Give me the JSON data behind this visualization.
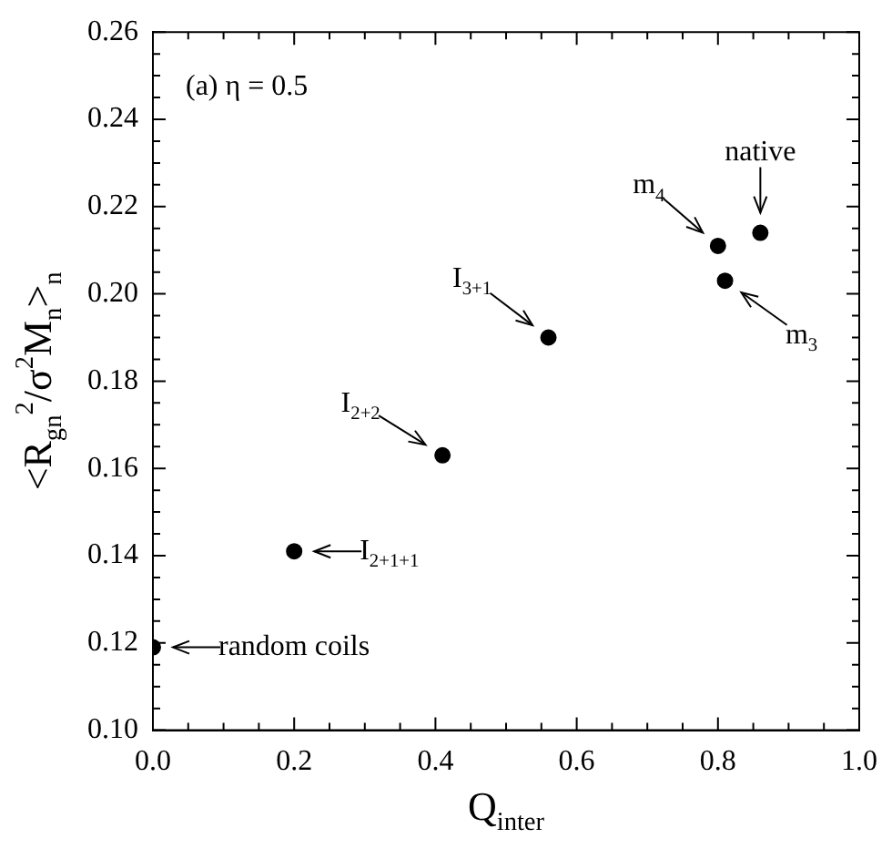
{
  "chart_data": {
    "type": "scatter",
    "xlabel": "Q$_{inter}$",
    "ylabel": "<R$_{gn}$$^{2}$/σ$^{2}$M$_{n}$>$_{n}$",
    "x": [
      0.0,
      0.2,
      0.41,
      0.56,
      0.8,
      0.81,
      0.86
    ],
    "values": [
      0.119,
      0.141,
      0.163,
      0.19,
      0.211,
      0.203,
      0.214
    ],
    "color": "#000000",
    "marker": "circle",
    "xlim": [
      0,
      1
    ],
    "xticks": [
      {
        "value": 0,
        "label": "0.0"
      },
      0.2,
      0.4,
      0.6,
      0.8,
      {
        "value": 1,
        "label": "1.0"
      }
    ],
    "ylim": [
      0.1,
      0.26
    ],
    "yticks": [
      {
        "value": 0.1,
        "label": "0.10"
      },
      0.12,
      0.14,
      0.16,
      0.18,
      {
        "value": 0.2,
        "label": "0.20"
      },
      0.22,
      0.24,
      0.26
    ],
    "grid": false,
    "legend": false,
    "annotations": [
      "(a) η = 0.5",
      {
        "text": "random coils",
        "x": 0.0,
        "y": 0.119
      },
      {
        "text": "I$_{2+1+1}$",
        "x": 0.2,
        "y": 0.141
      },
      {
        "text": "I$_{2+2}$",
        "x": 0.41,
        "y": 0.163
      },
      {
        "text": "I$_{3+1}$",
        "x": 0.56,
        "y": 0.19
      },
      {
        "text": "m$_{4}$",
        "x": 0.8,
        "y": 0.211
      },
      {
        "text": "m$_{3}$",
        "x": 0.81,
        "y": 0.203
      },
      {
        "text": "native",
        "x": 0.86,
        "y": 0.214
      }
    ]
  }
}
